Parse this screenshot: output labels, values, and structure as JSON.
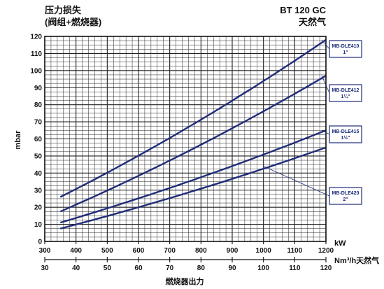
{
  "header": {
    "title_line1": "压力损失",
    "title_line2": "(阀组+燃烧器)",
    "model": "BT 120 GC",
    "fuel": "天然气"
  },
  "chart_data": {
    "type": "line",
    "xlabel": "燃烧器出力",
    "ylabel": "mbar",
    "x_unit": "kW",
    "x2_unit": "Nm³/h天然气",
    "xlim": [
      300,
      1200
    ],
    "ylim": [
      0,
      120
    ],
    "x_ticks": [
      "300",
      "400",
      "500",
      "600",
      "700",
      "800",
      "900",
      "1000",
      "1100",
      "1200"
    ],
    "x2_ticks": [
      "30",
      "40",
      "50",
      "60",
      "70",
      "80",
      "90",
      "100",
      "110",
      "120"
    ],
    "y_ticks": [
      "0",
      "10",
      "20",
      "30",
      "40",
      "50",
      "60",
      "70",
      "80",
      "90",
      "100",
      "110",
      "120"
    ],
    "grid": true,
    "series": [
      {
        "name": "MB-DLE410 1\"",
        "size": "1\"",
        "model": "MB-DLE410",
        "x": [
          350,
          1200
        ],
        "y": [
          26,
          118
        ]
      },
      {
        "name": "MB-DLE412 1¼\"",
        "size": "1¼\"",
        "model": "MB-DLE412",
        "x": [
          350,
          1200
        ],
        "y": [
          17.5,
          97
        ]
      },
      {
        "name": "MB-DLE415 1½\"",
        "size": "1½\"",
        "model": "MB-DLE415",
        "x": [
          350,
          1200
        ],
        "y": [
          11,
          65
        ]
      },
      {
        "name": "MB-DLE420 2\"",
        "size": "2\"",
        "model": "MB-DLE420",
        "x": [
          350,
          1200
        ],
        "y": [
          7.5,
          55
        ]
      }
    ],
    "colors": {
      "curve": "#1f2d7a",
      "grid": "#222222",
      "label_border": "#1f2d7a"
    }
  }
}
